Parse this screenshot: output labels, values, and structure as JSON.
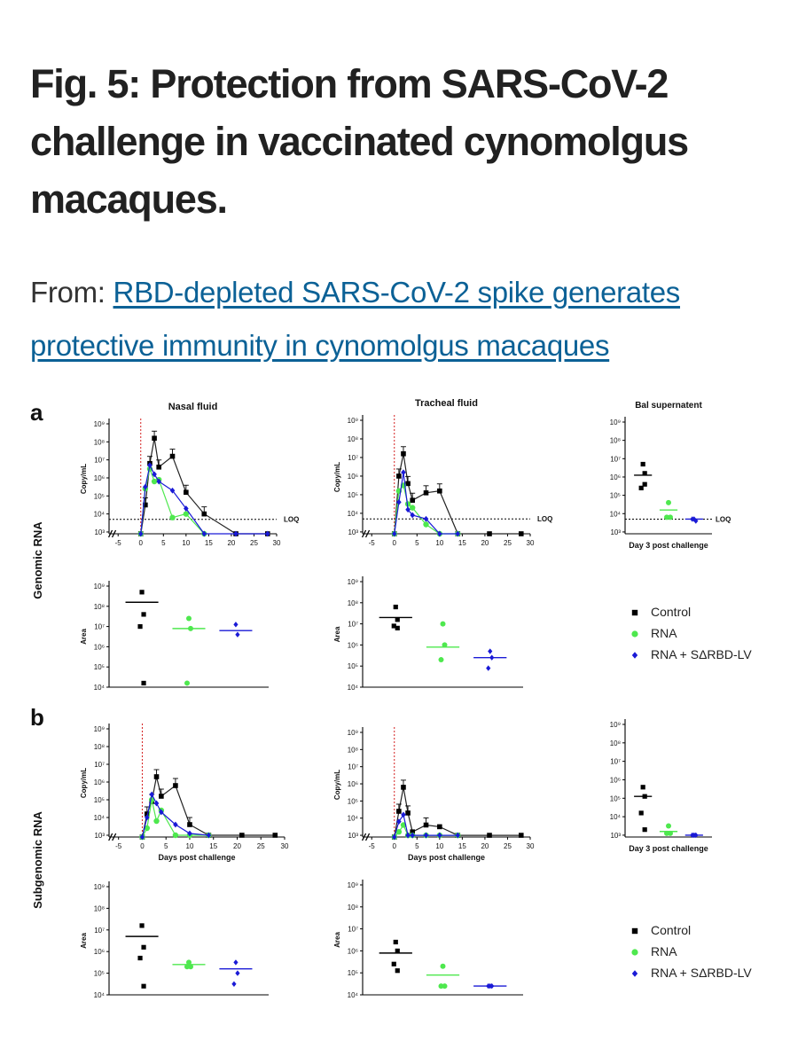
{
  "page": {
    "title": "Fig. 5: Protection from SARS-CoV-2 challenge in vaccinated cynomolgus macaques.",
    "source_prefix": "From: ",
    "source_link": "RBD-depleted SARS-CoV-2 spike generates protective immunity in cynomolgus macaques"
  },
  "colors": {
    "control": "#000000",
    "rna": "#4ee84e",
    "rna_lv": "#1a1ad6",
    "day0_line": "#d42020",
    "link": "#0b6196"
  },
  "figure": {
    "panel_labels": [
      "a",
      "b"
    ],
    "row_labels": [
      "Genomic RNA",
      "Subgenomic RNA"
    ],
    "legend": [
      "Control",
      "RNA",
      "RNA + SΔRBD-LV"
    ],
    "loq_label": "LOQ",
    "day3_label": "Day 3 post challenge"
  },
  "chart_data": [
    {
      "type": "line",
      "panel": "a",
      "title": "Nasal fluid",
      "ylabel": "Copy/mL",
      "xlabel": "",
      "x_ticks": [
        -5,
        0,
        5,
        10,
        15,
        20,
        25,
        30
      ],
      "xlim": [
        -7,
        30
      ],
      "y_ticks": [
        "10³",
        "10⁴",
        "10⁵",
        "10⁶",
        "10⁷",
        "10⁸",
        "10⁹"
      ],
      "ylog": [
        2.9,
        9
      ],
      "loq": 3.7,
      "day0_line": 0,
      "series": [
        {
          "name": "Control",
          "x": [
            0,
            1,
            2,
            3,
            4,
            7,
            10,
            14,
            21,
            28
          ],
          "y": [
            2.9,
            4.5,
            6.8,
            8.2,
            6.6,
            7.2,
            5.2,
            4.0,
            2.9,
            2.9
          ]
        },
        {
          "name": "RNA",
          "x": [
            0,
            1,
            2,
            3,
            4,
            7,
            10,
            14
          ],
          "y": [
            2.9,
            5.4,
            6.5,
            5.8,
            5.9,
            3.8,
            4.0,
            2.9
          ]
        },
        {
          "name": "RNA + SΔRBD-LV",
          "x": [
            0,
            1,
            2,
            3,
            4,
            7,
            10,
            14,
            21,
            28
          ],
          "y": [
            2.9,
            5.5,
            6.7,
            6.2,
            5.8,
            5.3,
            4.3,
            2.9,
            2.9,
            2.9
          ]
        }
      ]
    },
    {
      "type": "line",
      "panel": "a",
      "title": "Tracheal fluid",
      "ylabel": "Copy/mL",
      "xlabel": "",
      "x_ticks": [
        -5,
        0,
        5,
        10,
        15,
        20,
        25,
        30
      ],
      "xlim": [
        -7,
        30
      ],
      "y_ticks": [
        "10³",
        "10⁴",
        "10⁵",
        "10⁶",
        "10⁷",
        "10⁸",
        "10⁹"
      ],
      "ylog": [
        2.9,
        9
      ],
      "loq": 3.7,
      "day0_line": 0,
      "series": [
        {
          "name": "Control",
          "x": [
            0,
            1,
            2,
            3,
            4,
            7,
            10,
            14,
            21,
            28
          ],
          "y": [
            2.9,
            6.0,
            7.2,
            5.6,
            4.7,
            5.1,
            5.2,
            2.9,
            2.9,
            2.9
          ]
        },
        {
          "name": "RNA",
          "x": [
            0,
            1,
            2,
            3,
            4,
            7,
            10,
            14
          ],
          "y": [
            2.9,
            5.2,
            5.5,
            4.5,
            4.3,
            3.4,
            2.9,
            2.9
          ]
        },
        {
          "name": "RNA + SΔRBD-LV",
          "x": [
            0,
            1,
            2,
            3,
            4,
            7,
            10,
            14
          ],
          "y": [
            2.9,
            4.6,
            6.2,
            4.2,
            3.9,
            3.7,
            2.9,
            2.9
          ]
        }
      ]
    },
    {
      "type": "scatter",
      "panel": "a",
      "title": "Bal supernatent",
      "ylabel": "",
      "xlabel": "Day 3 post challenge",
      "y_ticks": [
        "10³",
        "10⁴",
        "10⁵",
        "10⁶",
        "10⁷",
        "10⁸",
        "10⁹"
      ],
      "ylog": [
        2.9,
        9
      ],
      "loq": 3.7,
      "series": [
        {
          "name": "Control",
          "values": [
            6.7,
            6.2,
            5.4,
            5.6
          ],
          "mean": 6.1
        },
        {
          "name": "RNA",
          "values": [
            4.6,
            3.8,
            3.8
          ],
          "mean": 4.2
        },
        {
          "name": "RNA + SΔRBD-LV",
          "values": [
            3.7,
            3.6,
            3.7
          ],
          "mean": 3.7
        }
      ]
    },
    {
      "type": "scatter",
      "panel": "a",
      "title": "",
      "ylabel": "Area",
      "xlabel": "",
      "y_ticks": [
        "10⁴",
        "10⁵",
        "10⁶",
        "10⁷",
        "10⁸",
        "10⁹"
      ],
      "ylog": [
        4,
        9
      ],
      "series": [
        {
          "name": "Control",
          "values": [
            8.7,
            7.6,
            7.0,
            4.2
          ],
          "mean": 8.2
        },
        {
          "name": "RNA",
          "values": [
            7.4,
            6.9,
            4.2
          ],
          "mean": 6.9
        },
        {
          "name": "RNA + SΔRBD-LV",
          "values": [
            7.1,
            6.6
          ],
          "mean": 6.8
        }
      ]
    },
    {
      "type": "scatter",
      "panel": "a",
      "title": "",
      "ylabel": "Area",
      "xlabel": "",
      "y_ticks": [
        "10⁴",
        "10⁵",
        "10⁶",
        "10⁷",
        "10⁸",
        "10⁹"
      ],
      "ylog": [
        4,
        9
      ],
      "series": [
        {
          "name": "Control",
          "values": [
            7.8,
            7.2,
            6.9,
            6.8
          ],
          "mean": 7.3
        },
        {
          "name": "RNA",
          "values": [
            7.0,
            6.0,
            5.3
          ],
          "mean": 5.9
        },
        {
          "name": "RNA + SΔRBD-LV",
          "values": [
            5.7,
            5.4,
            4.9
          ],
          "mean": 5.4
        }
      ]
    },
    {
      "type": "line",
      "panel": "b",
      "title": "",
      "ylabel": "Copy/mL",
      "xlabel": "Days post challenge",
      "x_ticks": [
        -5,
        0,
        5,
        10,
        15,
        20,
        25,
        30
      ],
      "xlim": [
        -7,
        30
      ],
      "y_ticks": [
        "10³",
        "10⁴",
        "10⁵",
        "10⁶",
        "10⁷",
        "10⁸",
        "10⁹"
      ],
      "ylog": [
        2.9,
        9
      ],
      "day0_line": 0,
      "series": [
        {
          "name": "Control",
          "x": [
            0,
            1,
            2,
            3,
            4,
            7,
            10,
            14,
            21,
            28
          ],
          "y": [
            2.9,
            4.2,
            4.9,
            6.3,
            5.2,
            5.8,
            3.6,
            3.0,
            3.0,
            3.0
          ]
        },
        {
          "name": "RNA",
          "x": [
            0,
            1,
            2,
            3,
            4,
            7,
            10,
            14
          ],
          "y": [
            2.9,
            3.4,
            5.0,
            3.8,
            4.4,
            3.0,
            3.0,
            3.0
          ]
        },
        {
          "name": "RNA + SΔRBD-LV",
          "x": [
            0,
            1,
            2,
            3,
            4,
            7,
            10,
            14
          ],
          "y": [
            2.9,
            4.0,
            5.3,
            4.8,
            4.3,
            3.6,
            3.1,
            3.0
          ]
        }
      ]
    },
    {
      "type": "line",
      "panel": "b",
      "title": "",
      "ylabel": "Copy/mL",
      "xlabel": "Days post challenge",
      "x_ticks": [
        -5,
        0,
        5,
        10,
        15,
        20,
        25,
        30
      ],
      "xlim": [
        -7,
        30
      ],
      "y_ticks": [
        "10³",
        "10⁴",
        "10⁵",
        "10⁶",
        "10⁷",
        "10⁸",
        "10⁹"
      ],
      "ylog": [
        2.9,
        9
      ],
      "day0_line": 0,
      "series": [
        {
          "name": "Control",
          "x": [
            0,
            1,
            2,
            3,
            4,
            7,
            10,
            14,
            21,
            28
          ],
          "y": [
            2.9,
            4.4,
            5.8,
            4.3,
            3.2,
            3.6,
            3.5,
            3.0,
            3.0,
            3.0
          ]
        },
        {
          "name": "RNA",
          "x": [
            0,
            1,
            2,
            3,
            4,
            7,
            10,
            14
          ],
          "y": [
            2.9,
            3.2,
            3.6,
            3.0,
            3.0,
            3.0,
            3.0,
            3.0
          ]
        },
        {
          "name": "RNA + SΔRBD-LV",
          "x": [
            0,
            1,
            2,
            3,
            4,
            7,
            10,
            14
          ],
          "y": [
            2.9,
            3.8,
            4.2,
            3.0,
            3.0,
            3.0,
            3.0,
            3.0
          ]
        }
      ]
    },
    {
      "type": "scatter",
      "panel": "b",
      "title": "",
      "ylabel": "",
      "xlabel": "Day 3 post challenge",
      "y_ticks": [
        "10³",
        "10⁴",
        "10⁵",
        "10⁶",
        "10⁷",
        "10⁸",
        "10⁹"
      ],
      "ylog": [
        2.9,
        9
      ],
      "series": [
        {
          "name": "Control",
          "values": [
            5.6,
            5.1,
            4.2,
            3.3
          ],
          "mean": 5.1
        },
        {
          "name": "RNA",
          "values": [
            3.5,
            3.1,
            3.1
          ],
          "mean": 3.2
        },
        {
          "name": "RNA + SΔRBD-LV",
          "values": [
            3.0,
            3.0,
            3.0
          ],
          "mean": 3.0
        }
      ]
    },
    {
      "type": "scatter",
      "panel": "b",
      "title": "",
      "ylabel": "Area",
      "xlabel": "",
      "y_ticks": [
        "10⁴",
        "10⁵",
        "10⁶",
        "10⁷",
        "10⁸",
        "10⁹"
      ],
      "ylog": [
        4,
        9
      ],
      "series": [
        {
          "name": "Control",
          "values": [
            7.2,
            6.2,
            5.7,
            4.4
          ],
          "mean": 6.7
        },
        {
          "name": "RNA",
          "values": [
            5.5,
            5.3,
            5.3
          ],
          "mean": 5.4
        },
        {
          "name": "RNA + SΔRBD-LV",
          "values": [
            5.5,
            5.0,
            4.5
          ],
          "mean": 5.2
        }
      ]
    },
    {
      "type": "scatter",
      "panel": "b",
      "title": "",
      "ylabel": "Area",
      "xlabel": "",
      "y_ticks": [
        "10⁴",
        "10⁵",
        "10⁶",
        "10⁷",
        "10⁸",
        "10⁹"
      ],
      "ylog": [
        4,
        9
      ],
      "series": [
        {
          "name": "Control",
          "values": [
            6.4,
            6.0,
            5.4,
            5.1
          ],
          "mean": 5.9
        },
        {
          "name": "RNA",
          "values": [
            5.3,
            4.4,
            4.4
          ],
          "mean": 4.9
        },
        {
          "name": "RNA + SΔRBD-LV",
          "values": [
            4.4,
            4.4,
            4.4
          ],
          "mean": 4.4
        }
      ]
    }
  ]
}
